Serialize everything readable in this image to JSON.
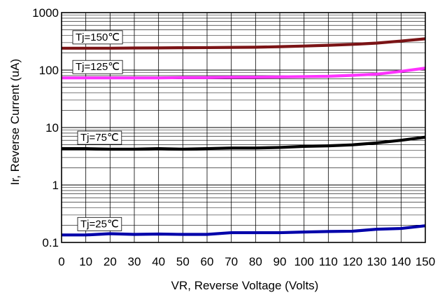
{
  "chart_data": {
    "type": "line",
    "title": "",
    "xlabel": "VR, Reverse Voltage (Volts)",
    "ylabel": "Ir, Reverse Current (uA)",
    "x_scale": "linear",
    "y_scale": "log",
    "xlim": [
      0,
      150
    ],
    "ylim": [
      0.1,
      1000
    ],
    "grid": true,
    "x_ticks": [
      0,
      10,
      20,
      30,
      40,
      50,
      60,
      70,
      80,
      90,
      100,
      110,
      120,
      130,
      140,
      150
    ],
    "x_tick_labels": [
      "0",
      "10",
      "20",
      "30",
      "40",
      "50",
      "60",
      "70",
      "80",
      "90",
      "100",
      "110",
      "120",
      "130",
      "140",
      "150"
    ],
    "y_ticks": [
      0.1,
      1,
      10,
      100,
      1000
    ],
    "y_tick_labels": [
      "0.1",
      "1",
      "10",
      "100",
      "1000"
    ],
    "x": [
      0,
      10,
      20,
      30,
      40,
      50,
      60,
      70,
      80,
      90,
      100,
      110,
      120,
      130,
      140,
      150
    ],
    "series": [
      {
        "name": "Tj=150℃",
        "color": "#7b1416",
        "values": [
          240,
          240,
          240,
          242,
          243,
          245,
          246,
          248,
          250,
          255,
          262,
          270,
          280,
          295,
          320,
          350
        ]
      },
      {
        "name": "Tj=125℃",
        "color": "#ff33ff",
        "values": [
          73,
          73,
          73,
          73,
          73,
          74,
          74,
          75,
          75,
          76,
          77,
          78,
          81,
          85,
          95,
          108
        ]
      },
      {
        "name": "Tj=75℃",
        "color": "#000000",
        "values": [
          4.3,
          4.3,
          4.2,
          4.2,
          4.3,
          4.2,
          4.3,
          4.4,
          4.4,
          4.5,
          4.7,
          4.8,
          5.0,
          5.4,
          6.0,
          6.8
        ]
      },
      {
        "name": "Tj=25℃",
        "color": "#0000aa",
        "values": [
          0.135,
          0.135,
          0.142,
          0.138,
          0.14,
          0.138,
          0.138,
          0.148,
          0.148,
          0.148,
          0.152,
          0.155,
          0.157,
          0.17,
          0.175,
          0.195
        ]
      }
    ]
  }
}
